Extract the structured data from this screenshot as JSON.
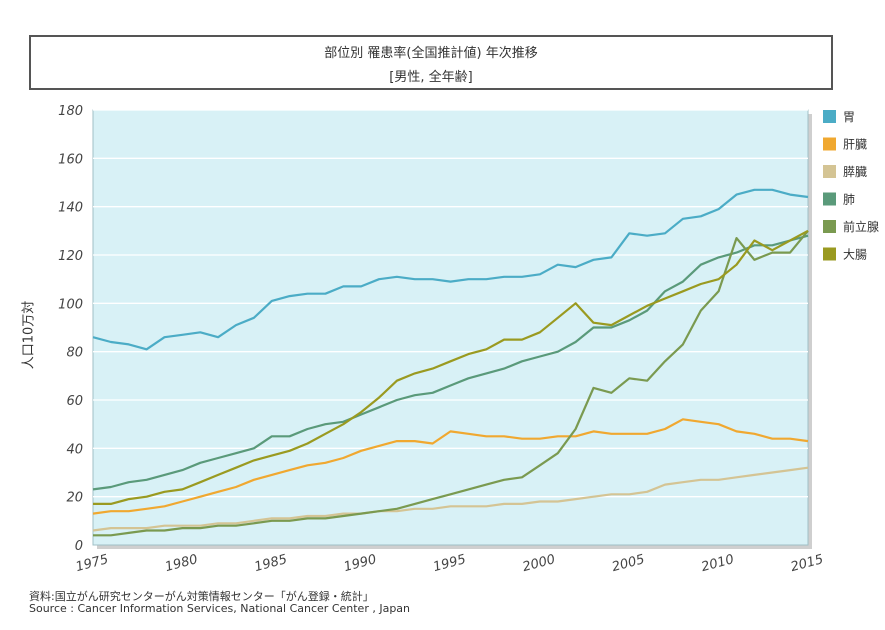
{
  "title_line1": "部位別 罹患率(全国推計値) 年次推移",
  "title_line2": "[男性, 全年齢]",
  "ylabel": "人口10万対",
  "source_line1": "資料:国立がん研究センターがん対策情報センター「がん登録・統計」",
  "source_line2": "Source : Cancer Information Services, National Cancer Center , Japan",
  "chart_data": {
    "type": "line",
    "title": "部位別 罹患率(全国推計値) 年次推移",
    "subtitle": "[男性, 全年齢]",
    "xlabel": "",
    "ylabel": "人口10万対",
    "xlim": [
      1975,
      2015
    ],
    "ylim": [
      0,
      180
    ],
    "xticks": [
      1975,
      1980,
      1985,
      1990,
      1995,
      2000,
      2005,
      2010,
      2015
    ],
    "yticks": [
      0,
      20,
      40,
      60,
      80,
      100,
      120,
      140,
      160,
      180
    ],
    "grid": true,
    "legend_position": "right",
    "series": [
      {
        "name": "胃",
        "color": "#4bacc6",
        "x": [
          1975,
          1976,
          1977,
          1978,
          1979,
          1980,
          1981,
          1982,
          1983,
          1984,
          1985,
          1986,
          1987,
          1988,
          1989,
          1990,
          1991,
          1992,
          1993,
          1994,
          1995,
          1996,
          1997,
          1998,
          1999,
          2000,
          2001,
          2002,
          2003,
          2004,
          2005,
          2006,
          2007,
          2008,
          2009,
          2010,
          2011,
          2012,
          2013,
          2014,
          2015
        ],
        "values": [
          86,
          84,
          83,
          81,
          86,
          87,
          88,
          86,
          91,
          94,
          101,
          103,
          104,
          104,
          107,
          107,
          110,
          111,
          110,
          110,
          109,
          110,
          110,
          111,
          111,
          112,
          116,
          115,
          118,
          119,
          129,
          128,
          129,
          135,
          136,
          139,
          145,
          147,
          147,
          145,
          144
        ]
      },
      {
        "name": "肝臓",
        "color": "#f0a830",
        "x": [
          1975,
          1976,
          1977,
          1978,
          1979,
          1980,
          1981,
          1982,
          1983,
          1984,
          1985,
          1986,
          1987,
          1988,
          1989,
          1990,
          1991,
          1992,
          1993,
          1994,
          1995,
          1996,
          1997,
          1998,
          1999,
          2000,
          2001,
          2002,
          2003,
          2004,
          2005,
          2006,
          2007,
          2008,
          2009,
          2010,
          2011,
          2012,
          2013,
          2014,
          2015
        ],
        "values": [
          13,
          14,
          14,
          15,
          16,
          18,
          20,
          22,
          24,
          27,
          29,
          31,
          33,
          34,
          36,
          39,
          41,
          43,
          43,
          42,
          47,
          46,
          45,
          45,
          44,
          44,
          45,
          45,
          47,
          46,
          46,
          46,
          48,
          52,
          51,
          50,
          47,
          46,
          44,
          44,
          43
        ]
      },
      {
        "name": "膵臓",
        "color": "#d4c494",
        "x": [
          1975,
          1976,
          1977,
          1978,
          1979,
          1980,
          1981,
          1982,
          1983,
          1984,
          1985,
          1986,
          1987,
          1988,
          1989,
          1990,
          1991,
          1992,
          1993,
          1994,
          1995,
          1996,
          1997,
          1998,
          1999,
          2000,
          2001,
          2002,
          2003,
          2004,
          2005,
          2006,
          2007,
          2008,
          2009,
          2010,
          2011,
          2012,
          2013,
          2014,
          2015
        ],
        "values": [
          6,
          7,
          7,
          7,
          8,
          8,
          8,
          9,
          9,
          10,
          11,
          11,
          12,
          12,
          13,
          13,
          14,
          14,
          15,
          15,
          16,
          16,
          16,
          17,
          17,
          18,
          18,
          19,
          20,
          21,
          21,
          22,
          25,
          26,
          27,
          27,
          28,
          29,
          30,
          31,
          32
        ]
      },
      {
        "name": "肺",
        "color": "#5a9a7a",
        "x": [
          1975,
          1976,
          1977,
          1978,
          1979,
          1980,
          1981,
          1982,
          1983,
          1984,
          1985,
          1986,
          1987,
          1988,
          1989,
          1990,
          1991,
          1992,
          1993,
          1994,
          1995,
          1996,
          1997,
          1998,
          1999,
          2000,
          2001,
          2002,
          2003,
          2004,
          2005,
          2006,
          2007,
          2008,
          2009,
          2010,
          2011,
          2012,
          2013,
          2014,
          2015
        ],
        "values": [
          23,
          24,
          26,
          27,
          29,
          31,
          34,
          36,
          38,
          40,
          45,
          45,
          48,
          50,
          51,
          54,
          57,
          60,
          62,
          63,
          66,
          69,
          71,
          73,
          76,
          78,
          80,
          84,
          90,
          90,
          93,
          97,
          105,
          109,
          116,
          119,
          121,
          124,
          124,
          126,
          128
        ]
      },
      {
        "name": "前立腺",
        "color": "#7a9a50",
        "x": [
          1975,
          1976,
          1977,
          1978,
          1979,
          1980,
          1981,
          1982,
          1983,
          1984,
          1985,
          1986,
          1987,
          1988,
          1989,
          1990,
          1991,
          1992,
          1993,
          1994,
          1995,
          1996,
          1997,
          1998,
          1999,
          2000,
          2001,
          2002,
          2003,
          2004,
          2005,
          2006,
          2007,
          2008,
          2009,
          2010,
          2011,
          2012,
          2013,
          2014,
          2015
        ],
        "values": [
          4,
          4,
          5,
          6,
          6,
          7,
          7,
          8,
          8,
          9,
          10,
          10,
          11,
          11,
          12,
          13,
          14,
          15,
          17,
          19,
          21,
          23,
          25,
          27,
          28,
          33,
          38,
          48,
          65,
          63,
          69,
          68,
          76,
          83,
          97,
          105,
          127,
          118,
          121,
          121,
          130
        ]
      },
      {
        "name": "大腸",
        "color": "#9a9a20",
        "x": [
          1975,
          1976,
          1977,
          1978,
          1979,
          1980,
          1981,
          1982,
          1983,
          1984,
          1985,
          1986,
          1987,
          1988,
          1989,
          1990,
          1991,
          1992,
          1993,
          1994,
          1995,
          1996,
          1997,
          1998,
          1999,
          2000,
          2001,
          2002,
          2003,
          2004,
          2005,
          2006,
          2007,
          2008,
          2009,
          2010,
          2011,
          2012,
          2013,
          2014,
          2015
        ],
        "values": [
          17,
          17,
          19,
          20,
          22,
          23,
          26,
          29,
          32,
          35,
          37,
          39,
          42,
          46,
          50,
          55,
          61,
          68,
          71,
          73,
          76,
          79,
          81,
          85,
          85,
          88,
          94,
          100,
          92,
          91,
          95,
          99,
          102,
          105,
          108,
          110,
          116,
          126,
          122,
          126,
          130
        ]
      }
    ]
  }
}
